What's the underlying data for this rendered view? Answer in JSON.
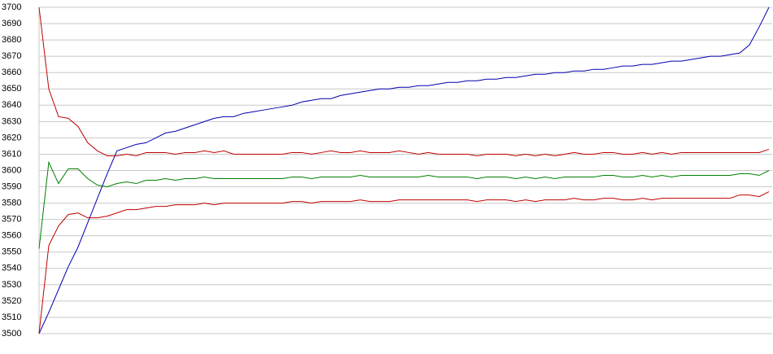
{
  "chart_data": {
    "type": "line",
    "ylim": [
      3500,
      3700
    ],
    "yticks": [
      3500,
      3510,
      3520,
      3530,
      3540,
      3550,
      3560,
      3570,
      3580,
      3590,
      3600,
      3610,
      3620,
      3630,
      3640,
      3650,
      3660,
      3670,
      3680,
      3690,
      3700
    ],
    "grid": true,
    "series": [
      {
        "color": "#0000b0",
        "values": [
          3500,
          3513,
          3527,
          3541,
          3553,
          3568,
          3583,
          3598,
          3612,
          3614,
          3616,
          3617,
          3620,
          3623,
          3624,
          3626,
          3628,
          3630,
          3632,
          3633,
          3633,
          3635,
          3636,
          3637,
          3638,
          3639,
          3640,
          3642,
          3643,
          3644,
          3644,
          3646,
          3647,
          3648,
          3649,
          3650,
          3650,
          3651,
          3651,
          3652,
          3652,
          3653,
          3654,
          3654,
          3655,
          3655,
          3656,
          3656,
          3657,
          3657,
          3658,
          3659,
          3659,
          3660,
          3660,
          3661,
          3661,
          3662,
          3662,
          3663,
          3664,
          3664,
          3665,
          3665,
          3666,
          3667,
          3667,
          3668,
          3669,
          3670,
          3670,
          3671,
          3672,
          3677,
          3688,
          3700
        ]
      },
      {
        "color": "#c00000",
        "values": [
          3700,
          3650,
          3633,
          3632,
          3627,
          3617,
          3612,
          3609,
          3609,
          3610,
          3609,
          3611,
          3611,
          3611,
          3610,
          3611,
          3611,
          3612,
          3611,
          3612,
          3610,
          3610,
          3610,
          3610,
          3610,
          3610,
          3611,
          3611,
          3610,
          3611,
          3612,
          3611,
          3611,
          3612,
          3611,
          3611,
          3611,
          3612,
          3611,
          3610,
          3611,
          3610,
          3610,
          3610,
          3610,
          3609,
          3610,
          3610,
          3610,
          3609,
          3610,
          3609,
          3610,
          3609,
          3610,
          3611,
          3610,
          3610,
          3611,
          3611,
          3610,
          3610,
          3611,
          3610,
          3611,
          3610,
          3611,
          3611,
          3611,
          3611,
          3611,
          3611,
          3611,
          3611,
          3611,
          3613
        ]
      },
      {
        "color": "#008000",
        "values": [
          3552,
          3605,
          3592,
          3601,
          3601,
          3595,
          3591,
          3590,
          3592,
          3593,
          3592,
          3594,
          3594,
          3595,
          3594,
          3595,
          3595,
          3596,
          3595,
          3595,
          3595,
          3595,
          3595,
          3595,
          3595,
          3595,
          3596,
          3596,
          3595,
          3596,
          3596,
          3596,
          3596,
          3597,
          3596,
          3596,
          3596,
          3596,
          3596,
          3596,
          3597,
          3596,
          3596,
          3596,
          3596,
          3595,
          3596,
          3596,
          3596,
          3595,
          3596,
          3595,
          3596,
          3595,
          3596,
          3596,
          3596,
          3596,
          3597,
          3597,
          3596,
          3596,
          3597,
          3596,
          3597,
          3596,
          3597,
          3597,
          3597,
          3597,
          3597,
          3597,
          3598,
          3598,
          3597,
          3600
        ]
      },
      {
        "color": "#c00000",
        "values": [
          3500,
          3554,
          3566,
          3573,
          3574,
          3571,
          3571,
          3572,
          3574,
          3576,
          3576,
          3577,
          3578,
          3578,
          3579,
          3579,
          3579,
          3580,
          3579,
          3580,
          3580,
          3580,
          3580,
          3580,
          3580,
          3580,
          3581,
          3581,
          3580,
          3581,
          3581,
          3581,
          3581,
          3582,
          3581,
          3581,
          3581,
          3582,
          3582,
          3582,
          3582,
          3582,
          3582,
          3582,
          3582,
          3581,
          3582,
          3582,
          3582,
          3581,
          3582,
          3581,
          3582,
          3582,
          3582,
          3583,
          3582,
          3582,
          3583,
          3583,
          3582,
          3582,
          3583,
          3582,
          3583,
          3583,
          3583,
          3583,
          3583,
          3583,
          3583,
          3583,
          3585,
          3585,
          3584,
          3587
        ]
      }
    ]
  }
}
